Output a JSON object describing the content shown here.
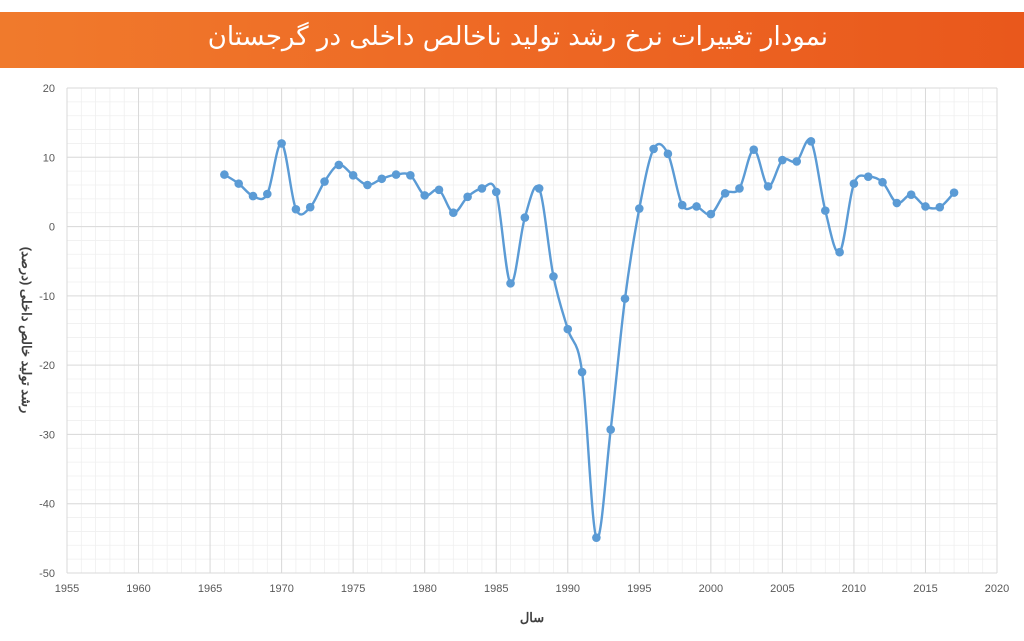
{
  "header": {
    "title": "نمودار تغییرات نرخ رشد تولید ناخالص داخلی در گرجستان"
  },
  "colors": {
    "banner": "#ee6a25",
    "series": "#5b9bd5",
    "grid": "#d9d9d9"
  },
  "chart_data": {
    "type": "line",
    "title": "نمودار تغییرات نرخ رشد تولید ناخالص داخلی در گرجستان",
    "xlabel": "سال",
    "ylabel": "رشد تولید خالص داخلی (درصد)",
    "xlim": [
      1955,
      2020
    ],
    "ylim": [
      -50,
      20
    ],
    "x_ticks": [
      "1955",
      "1960",
      "1965",
      "1970",
      "1975",
      "1980",
      "1985",
      "1990",
      "1995",
      "2000",
      "2005",
      "2010",
      "2015",
      "2020"
    ],
    "y_ticks": [
      "20",
      "10",
      "0",
      "-10",
      "-20",
      "-30",
      "-40",
      "-50"
    ],
    "grid": true,
    "smooth": true,
    "series": [
      {
        "x": [
          1966,
          1967,
          1968,
          1969,
          1970,
          1971,
          1972,
          1973,
          1974,
          1975,
          1976,
          1977,
          1978,
          1979,
          1980,
          1981,
          1982,
          1983,
          1984,
          1985,
          1986,
          1987,
          1988,
          1989,
          1990,
          1991,
          1992,
          1993,
          1994,
          1995,
          1996,
          1997,
          1998,
          1999,
          2000,
          2001,
          2002,
          2003,
          2004,
          2005,
          2006,
          2007,
          2008,
          2009,
          2010,
          2011,
          2012,
          2013,
          2014,
          2015,
          2016,
          2017
        ],
        "values": [
          7.5,
          6.2,
          4.4,
          4.7,
          12.0,
          2.5,
          2.8,
          6.5,
          8.9,
          7.4,
          6.0,
          6.9,
          7.5,
          7.4,
          4.5,
          5.3,
          2.0,
          4.3,
          5.5,
          5.0,
          -8.2,
          1.3,
          5.5,
          -7.2,
          -14.8,
          -21.0,
          -44.9,
          -29.3,
          -10.4,
          2.6,
          11.2,
          10.5,
          3.1,
          2.9,
          1.8,
          4.8,
          5.5,
          11.1,
          5.8,
          9.6,
          9.4,
          12.3,
          2.3,
          -3.7,
          6.2,
          7.2,
          6.4,
          3.4,
          4.6,
          2.9,
          2.8,
          4.9
        ]
      }
    ]
  }
}
